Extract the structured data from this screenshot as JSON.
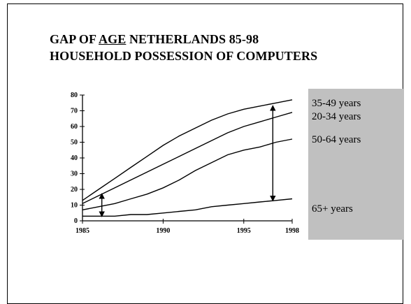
{
  "title": {
    "line1_prefix": "GAP OF ",
    "line1_underlined": "AGE",
    "line1_suffix": " NETHERLANDS 85-98",
    "line2": "HOUSEHOLD POSSESSION OF COMPUTERS"
  },
  "chart_data": {
    "type": "line",
    "title": "GAP OF AGE NETHERLANDS 85-98 HOUSEHOLD POSSESSION OF COMPUTERS",
    "xlabel": "",
    "ylabel": "",
    "xlim": [
      1985,
      1998
    ],
    "ylim": [
      0,
      80
    ],
    "x_ticks": [
      1985,
      1990,
      1995,
      1998
    ],
    "y_ticks": [
      0,
      10,
      20,
      30,
      40,
      50,
      60,
      70,
      80
    ],
    "grid": false,
    "legend_placement": "right",
    "legend_background": "#c0c0c0",
    "line_color": "#000000",
    "x": [
      1985,
      1986,
      1987,
      1988,
      1989,
      1990,
      1991,
      1992,
      1993,
      1994,
      1995,
      1996,
      1997,
      1998
    ],
    "series": [
      {
        "name": "35-49 years",
        "values": [
          13,
          20,
          27,
          34,
          41,
          48,
          54,
          59,
          64,
          68,
          71,
          73,
          75,
          77
        ]
      },
      {
        "name": "20-34 years",
        "values": [
          11,
          16,
          21,
          26,
          31,
          36,
          41,
          46,
          51,
          56,
          60,
          63,
          66,
          69
        ]
      },
      {
        "name": "50-64 years",
        "values": [
          7,
          9,
          11,
          14,
          17,
          21,
          26,
          32,
          37,
          42,
          45,
          47,
          50,
          52
        ]
      },
      {
        "name": "65+  years",
        "values": [
          3,
          3,
          3,
          4,
          4,
          5,
          6,
          7,
          9,
          10,
          11,
          12,
          13,
          14
        ]
      }
    ],
    "annotations": [
      {
        "type": "double-arrow",
        "x": 1986.2,
        "from": 3,
        "to": 17
      },
      {
        "type": "double-arrow",
        "x": 1996.8,
        "from": 13,
        "to": 73
      }
    ]
  }
}
